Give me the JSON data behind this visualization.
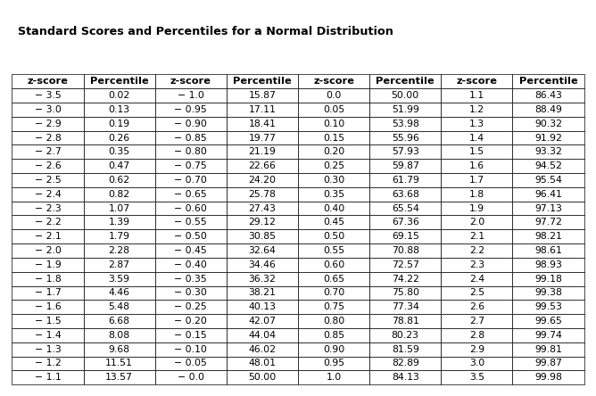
{
  "title": "Standard Scores and Percentiles for a Normal Distribution",
  "headers": [
    "z-score",
    "Percentile",
    "z-score",
    "Percentile",
    "z-score",
    "Percentile",
    "z-score",
    "Percentile"
  ],
  "rows": [
    [
      "− 3.5",
      "0.02",
      "− 1.0",
      "15.87",
      "0.0",
      "50.00",
      "1.1",
      "86.43"
    ],
    [
      "− 3.0",
      "0.13",
      "− 0.95",
      "17.11",
      "0.05",
      "51.99",
      "1.2",
      "88.49"
    ],
    [
      "− 2.9",
      "0.19",
      "− 0.90",
      "18.41",
      "0.10",
      "53.98",
      "1.3",
      "90.32"
    ],
    [
      "− 2.8",
      "0.26",
      "− 0.85",
      "19.77",
      "0.15",
      "55.96",
      "1.4",
      "91.92"
    ],
    [
      "− 2.7",
      "0.35",
      "− 0.80",
      "21.19",
      "0.20",
      "57.93",
      "1.5",
      "93.32"
    ],
    [
      "− 2.6",
      "0.47",
      "− 0.75",
      "22.66",
      "0.25",
      "59.87",
      "1.6",
      "94.52"
    ],
    [
      "− 2.5",
      "0.62",
      "− 0.70",
      "24.20",
      "0.30",
      "61.79",
      "1.7",
      "95.54"
    ],
    [
      "− 2.4",
      "0.82",
      "− 0.65",
      "25.78",
      "0.35",
      "63.68",
      "1.8",
      "96.41"
    ],
    [
      "− 2.3",
      "1.07",
      "− 0.60",
      "27.43",
      "0.40",
      "65.54",
      "1.9",
      "97.13"
    ],
    [
      "− 2.2",
      "1.39",
      "− 0.55",
      "29.12",
      "0.45",
      "67.36",
      "2.0",
      "97.72"
    ],
    [
      "− 2.1",
      "1.79",
      "− 0.50",
      "30.85",
      "0.50",
      "69.15",
      "2.1",
      "98.21"
    ],
    [
      "− 2.0",
      "2.28",
      "− 0.45",
      "32.64",
      "0.55",
      "70.88",
      "2.2",
      "98.61"
    ],
    [
      "− 1.9",
      "2.87",
      "− 0.40",
      "34.46",
      "0.60",
      "72.57",
      "2.3",
      "98.93"
    ],
    [
      "− 1.8",
      "3.59",
      "− 0.35",
      "36.32",
      "0.65",
      "74.22",
      "2.4",
      "99.18"
    ],
    [
      "− 1.7",
      "4.46",
      "− 0.30",
      "38.21",
      "0.70",
      "75.80",
      "2.5",
      "99.38"
    ],
    [
      "− 1.6",
      "5.48",
      "− 0.25",
      "40.13",
      "0.75",
      "77.34",
      "2.6",
      "99.53"
    ],
    [
      "− 1.5",
      "6.68",
      "− 0.20",
      "42.07",
      "0.80",
      "78.81",
      "2.7",
      "99.65"
    ],
    [
      "− 1.4",
      "8.08",
      "− 0.15",
      "44.04",
      "0.85",
      "80.23",
      "2.8",
      "99.74"
    ],
    [
      "− 1.3",
      "9.68",
      "− 0.10",
      "46.02",
      "0.90",
      "81.59",
      "2.9",
      "99.81"
    ],
    [
      "− 1.2",
      "11.51",
      "− 0.05",
      "48.01",
      "0.95",
      "82.89",
      "3.0",
      "99.87"
    ],
    [
      "− 1.1",
      "13.57",
      "− 0.0",
      "50.00",
      "1.0",
      "84.13",
      "3.5",
      "99.98"
    ]
  ],
  "background_color": "#ffffff",
  "border_color": "#000000",
  "header_fontsize": 8.2,
  "data_fontsize": 7.8,
  "title_fontsize": 9.2,
  "title_fontweight": "bold"
}
